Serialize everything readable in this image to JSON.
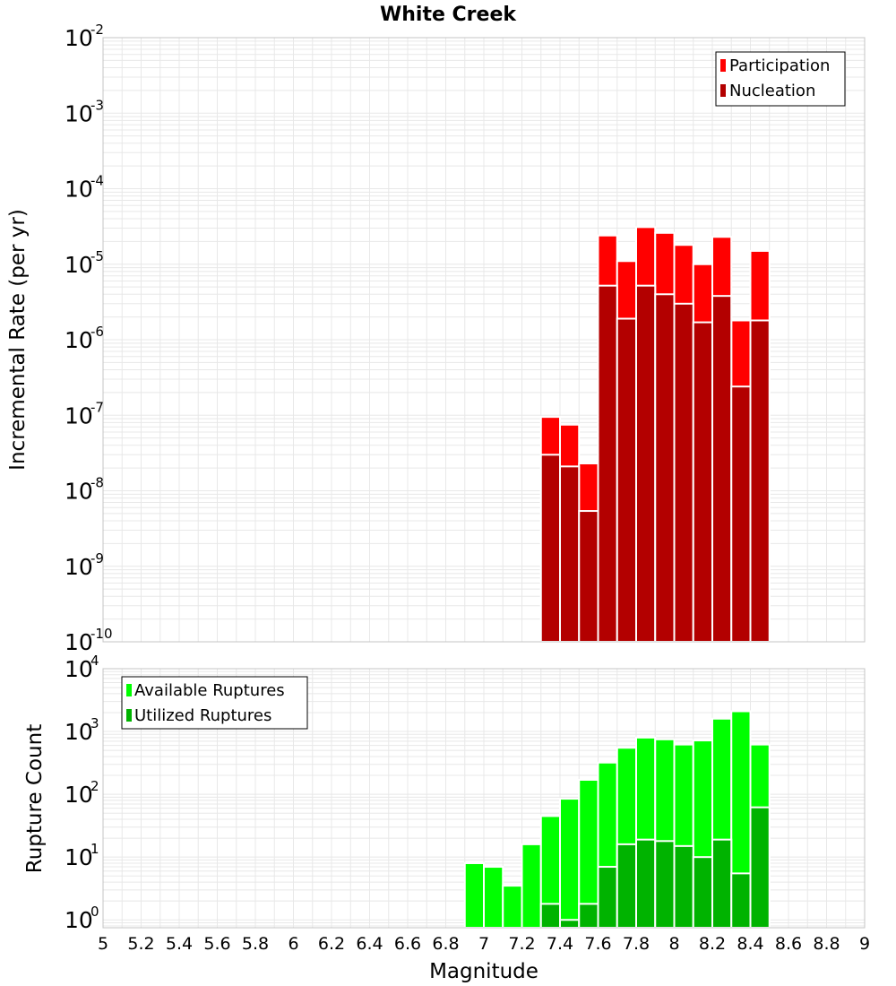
{
  "chart_data": [
    {
      "type": "bar",
      "title": "White Creek",
      "ylabel": "Incremental Rate (per yr)",
      "xlabel": "",
      "yscale": "log",
      "ylim": [
        1e-10,
        0.01
      ],
      "xlim": [
        5,
        9
      ],
      "bar_width": 0.1,
      "legend_position": "top-right",
      "grid": true,
      "x": [
        7.35,
        7.45,
        7.55,
        7.65,
        7.75,
        7.85,
        7.95,
        8.05,
        8.15,
        8.25,
        8.35,
        8.45
      ],
      "series": [
        {
          "name": "Participation",
          "color": "#ff0000",
          "values": [
            9.5e-08,
            7.5e-08,
            2.3e-08,
            2.4e-05,
            1.1e-05,
            3.1e-05,
            2.6e-05,
            1.8e-05,
            1e-05,
            2.3e-05,
            1.8e-06,
            1.5e-05
          ]
        },
        {
          "name": "Nucleation",
          "color": "#b30000",
          "values": [
            3e-08,
            2.1e-08,
            5.4e-09,
            5.2e-06,
            1.9e-06,
            5.2e-06,
            4e-06,
            3e-06,
            1.7e-06,
            3.8e-06,
            2.4e-07,
            1.8e-06
          ]
        }
      ]
    },
    {
      "type": "bar",
      "title": "",
      "ylabel": "Rupture Count",
      "xlabel": "Magnitude",
      "yscale": "log",
      "ylim": [
        0.75,
        10000
      ],
      "xlim": [
        5,
        9
      ],
      "bar_width": 0.1,
      "legend_position": "top-left",
      "grid": true,
      "x": [
        6.95,
        7.05,
        7.15,
        7.25,
        7.35,
        7.45,
        7.55,
        7.65,
        7.75,
        7.85,
        7.95,
        8.05,
        8.15,
        8.25,
        8.35,
        8.45
      ],
      "series": [
        {
          "name": "Available Ruptures",
          "color": "#00ff00",
          "values": [
            8,
            7,
            3.5,
            16,
            45,
            85,
            170,
            320,
            550,
            800,
            750,
            620,
            720,
            1600,
            2100,
            620
          ]
        },
        {
          "name": "Utilized Ruptures",
          "color": "#00b300",
          "values": [
            null,
            null,
            null,
            null,
            1.8,
            1,
            1.8,
            7,
            16,
            19,
            18,
            15,
            10,
            19,
            5.5,
            62
          ]
        }
      ]
    }
  ],
  "xticks": [
    "5",
    "5.2",
    "5.4",
    "5.6",
    "5.8",
    "6",
    "6.2",
    "6.4",
    "6.6",
    "6.8",
    "7",
    "7.2",
    "7.4",
    "7.6",
    "7.8",
    "8",
    "8.2",
    "8.4",
    "8.6",
    "8.8",
    "9"
  ],
  "top_yticks": [
    {
      "base": "10",
      "exp": "-2"
    },
    {
      "base": "10",
      "exp": "-3"
    },
    {
      "base": "10",
      "exp": "-4"
    },
    {
      "base": "10",
      "exp": "-5"
    },
    {
      "base": "10",
      "exp": "-6"
    },
    {
      "base": "10",
      "exp": "-7"
    },
    {
      "base": "10",
      "exp": "-8"
    },
    {
      "base": "10",
      "exp": "-9"
    },
    {
      "base": "10",
      "exp": "-10"
    }
  ],
  "bottom_yticks": [
    {
      "base": "10",
      "exp": "4"
    },
    {
      "base": "10",
      "exp": "3"
    },
    {
      "base": "10",
      "exp": "2"
    },
    {
      "base": "10",
      "exp": "1"
    },
    {
      "base": "10",
      "exp": "0"
    }
  ],
  "colors": {
    "grid": "#e8e8e8",
    "plot_border": "#c4c4c4",
    "bar_separator": "#ffffff"
  }
}
